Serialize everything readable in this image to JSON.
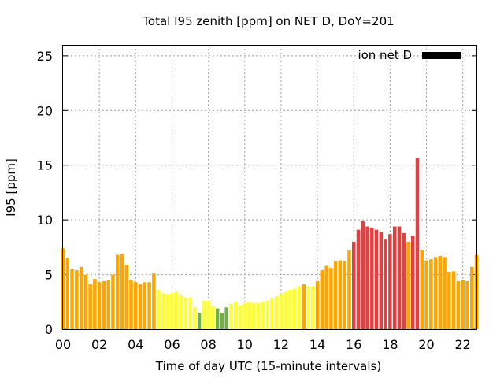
{
  "chart_data": {
    "type": "bar",
    "title": "Total I95 zenith [ppm] on NET D, DoY=201",
    "xlabel": "Time of day UTC (15-minute intervals)",
    "ylabel": "I95 [ppm]",
    "xlim": [
      0,
      22.75
    ],
    "ylim": [
      0,
      26
    ],
    "xticks": [
      "00",
      "02",
      "04",
      "06",
      "08",
      "10",
      "12",
      "14",
      "16",
      "18",
      "20",
      "22"
    ],
    "yticks": [
      "0",
      "5",
      "10",
      "15",
      "20",
      "25"
    ],
    "legend": {
      "label": "ion net D",
      "color": "#000000",
      "position": "top-right"
    },
    "grid": true,
    "interval_hours": 0.25,
    "colors": {
      "green": "#70b040",
      "yellow": "#ffff30",
      "orange": "#ffa500",
      "red": "#e04040"
    },
    "values": [
      7.4,
      6.5,
      5.5,
      5.4,
      5.7,
      5.0,
      4.1,
      4.6,
      4.3,
      4.4,
      4.5,
      5.0,
      6.8,
      6.9,
      5.9,
      4.5,
      4.3,
      4.1,
      4.3,
      4.3,
      5.1,
      3.6,
      3.3,
      3.2,
      3.3,
      3.4,
      3.1,
      2.9,
      2.9,
      2.0,
      1.5,
      2.6,
      2.6,
      2.1,
      1.9,
      1.5,
      2.0,
      2.3,
      2.5,
      2.2,
      2.4,
      2.5,
      2.4,
      2.4,
      2.5,
      2.6,
      2.8,
      3.0,
      3.2,
      3.4,
      3.6,
      3.7,
      3.9,
      4.1,
      3.9,
      3.9,
      4.4,
      5.4,
      5.8,
      5.6,
      6.2,
      6.3,
      6.2,
      7.2,
      8.0,
      9.1,
      9.9,
      9.4,
      9.3,
      9.1,
      8.9,
      8.2,
      8.7,
      9.4,
      9.4,
      8.8,
      8.0,
      8.5,
      15.7,
      7.2,
      6.3,
      6.4,
      6.6,
      6.7,
      6.6,
      5.2,
      5.3,
      4.4,
      4.5,
      4.4,
      5.7,
      6.8
    ],
    "bar_colors": [
      "orange",
      "orange",
      "orange",
      "orange",
      "orange",
      "orange",
      "orange",
      "orange",
      "orange",
      "orange",
      "orange",
      "orange",
      "orange",
      "orange",
      "orange",
      "orange",
      "orange",
      "orange",
      "orange",
      "orange",
      "orange",
      "yellow",
      "yellow",
      "yellow",
      "yellow",
      "yellow",
      "yellow",
      "yellow",
      "yellow",
      "yellow",
      "green",
      "yellow",
      "yellow",
      "yellow",
      "green",
      "green",
      "green",
      "yellow",
      "yellow",
      "yellow",
      "yellow",
      "yellow",
      "yellow",
      "yellow",
      "yellow",
      "yellow",
      "yellow",
      "yellow",
      "yellow",
      "yellow",
      "yellow",
      "yellow",
      "yellow",
      "orange",
      "yellow",
      "yellow",
      "orange",
      "orange",
      "orange",
      "orange",
      "orange",
      "orange",
      "orange",
      "orange",
      "red",
      "red",
      "red",
      "red",
      "red",
      "red",
      "red",
      "red",
      "red",
      "red",
      "red",
      "red",
      "orange",
      "red",
      "red",
      "orange",
      "orange",
      "orange",
      "orange",
      "orange",
      "orange",
      "orange",
      "orange",
      "orange",
      "orange",
      "orange",
      "orange",
      "orange"
    ]
  }
}
